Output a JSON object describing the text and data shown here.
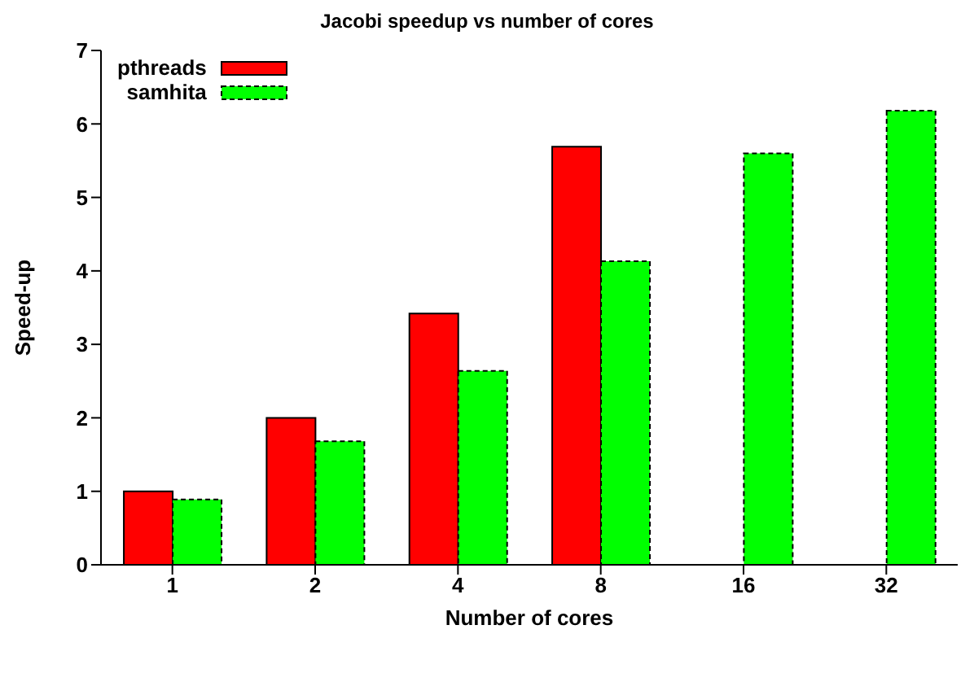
{
  "chart_data": {
    "type": "bar",
    "title": "Jacobi speedup vs number of cores",
    "xlabel": "Number of cores",
    "ylabel": "Speed-up",
    "categories": [
      "1",
      "2",
      "4",
      "8",
      "16",
      "32"
    ],
    "series": [
      {
        "name": "pthreads",
        "color": "#ff0000",
        "values": [
          1.0,
          2.0,
          3.42,
          5.69,
          null,
          null
        ]
      },
      {
        "name": "samhita",
        "color": "#00ff00",
        "line_style": "dashed",
        "values": [
          0.89,
          1.68,
          2.64,
          4.13,
          5.6,
          6.18
        ]
      }
    ],
    "ylim": [
      0,
      7
    ],
    "yticks": [
      0,
      1,
      2,
      3,
      4,
      5,
      6,
      7
    ],
    "grid": false,
    "legend": "top left"
  }
}
